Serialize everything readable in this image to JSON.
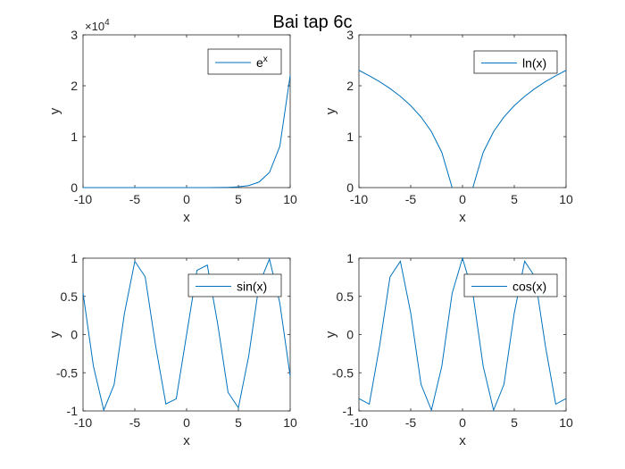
{
  "figure": {
    "title": "Bai tap 6c"
  },
  "chart_data": [
    {
      "type": "line",
      "xlabel": "x",
      "ylabel": "y",
      "xlim": [
        -10,
        10
      ],
      "ylim": [
        0,
        3
      ],
      "y_exponent_label": "×10",
      "y_exponent_power": "4",
      "legend_base": "e",
      "legend_sup": "x",
      "legend_position": "top-right",
      "line_color": "#0072BD",
      "xticks": [
        -10,
        -5,
        0,
        5,
        10
      ],
      "yticks": [
        0,
        1,
        2,
        3
      ],
      "x": [
        -10,
        -9,
        -8,
        -7,
        -6,
        -5,
        -4,
        -3,
        -2,
        -1,
        0,
        1,
        2,
        3,
        4,
        5,
        6,
        7,
        8,
        9,
        10
      ],
      "y": [
        0,
        0,
        0,
        0,
        0,
        0,
        0,
        0,
        0,
        0,
        0.0001,
        0.0003,
        0.0007,
        0.002,
        0.0055,
        0.0148,
        0.0403,
        0.1097,
        0.2981,
        0.8103,
        2.2026
      ]
    },
    {
      "type": "line",
      "xlabel": "x",
      "ylabel": "y",
      "xlim": [
        -10,
        10
      ],
      "ylim": [
        0,
        3
      ],
      "legend_text": "ln(x)",
      "legend_position": "top-right",
      "line_color": "#0072BD",
      "xticks": [
        -10,
        -5,
        0,
        5,
        10
      ],
      "yticks": [
        0,
        1,
        2,
        3
      ],
      "x": [
        -10,
        -9,
        -8,
        -7,
        -6,
        -5,
        -4,
        -3,
        -2,
        -1,
        0,
        1,
        2,
        3,
        4,
        5,
        6,
        7,
        8,
        9,
        10
      ],
      "y": [
        2.3026,
        2.1972,
        2.0794,
        1.9459,
        1.7918,
        1.6094,
        1.3863,
        1.0986,
        0.6931,
        0,
        null,
        0,
        0.6931,
        1.0986,
        1.3863,
        1.6094,
        1.7918,
        1.9459,
        2.0794,
        2.1972,
        2.3026
      ]
    },
    {
      "type": "line",
      "xlabel": "x",
      "ylabel": "y",
      "xlim": [
        -10,
        10
      ],
      "ylim": [
        -1,
        1
      ],
      "legend_text": "sin(x)",
      "legend_position": "top-right",
      "line_color": "#0072BD",
      "xticks": [
        -10,
        -5,
        0,
        5,
        10
      ],
      "yticks": [
        -1,
        -0.5,
        0,
        0.5,
        1
      ],
      "x": [
        -10,
        -9,
        -8,
        -7,
        -6,
        -5,
        -4,
        -3,
        -2,
        -1,
        0,
        1,
        2,
        3,
        4,
        5,
        6,
        7,
        8,
        9,
        10
      ],
      "y": [
        0.544,
        -0.412,
        -0.989,
        -0.657,
        0.279,
        0.959,
        0.757,
        -0.141,
        -0.909,
        -0.841,
        0,
        0.841,
        0.909,
        0.141,
        -0.757,
        -0.959,
        -0.279,
        0.657,
        0.989,
        0.412,
        -0.544
      ]
    },
    {
      "type": "line",
      "xlabel": "x",
      "ylabel": "y",
      "xlim": [
        -10,
        10
      ],
      "ylim": [
        -1,
        1
      ],
      "legend_text": "cos(x)",
      "legend_position": "top-right",
      "line_color": "#0072BD",
      "xticks": [
        -10,
        -5,
        0,
        5,
        10
      ],
      "yticks": [
        -1,
        -0.5,
        0,
        0.5,
        1
      ],
      "x": [
        -10,
        -9,
        -8,
        -7,
        -6,
        -5,
        -4,
        -3,
        -2,
        -1,
        0,
        1,
        2,
        3,
        4,
        5,
        6,
        7,
        8,
        9,
        10
      ],
      "y": [
        -0.839,
        -0.911,
        -0.146,
        0.754,
        0.96,
        0.284,
        -0.654,
        -0.99,
        -0.416,
        0.54,
        1,
        0.54,
        -0.416,
        -0.99,
        -0.654,
        0.284,
        0.96,
        0.754,
        -0.146,
        -0.911,
        -0.839
      ]
    }
  ]
}
